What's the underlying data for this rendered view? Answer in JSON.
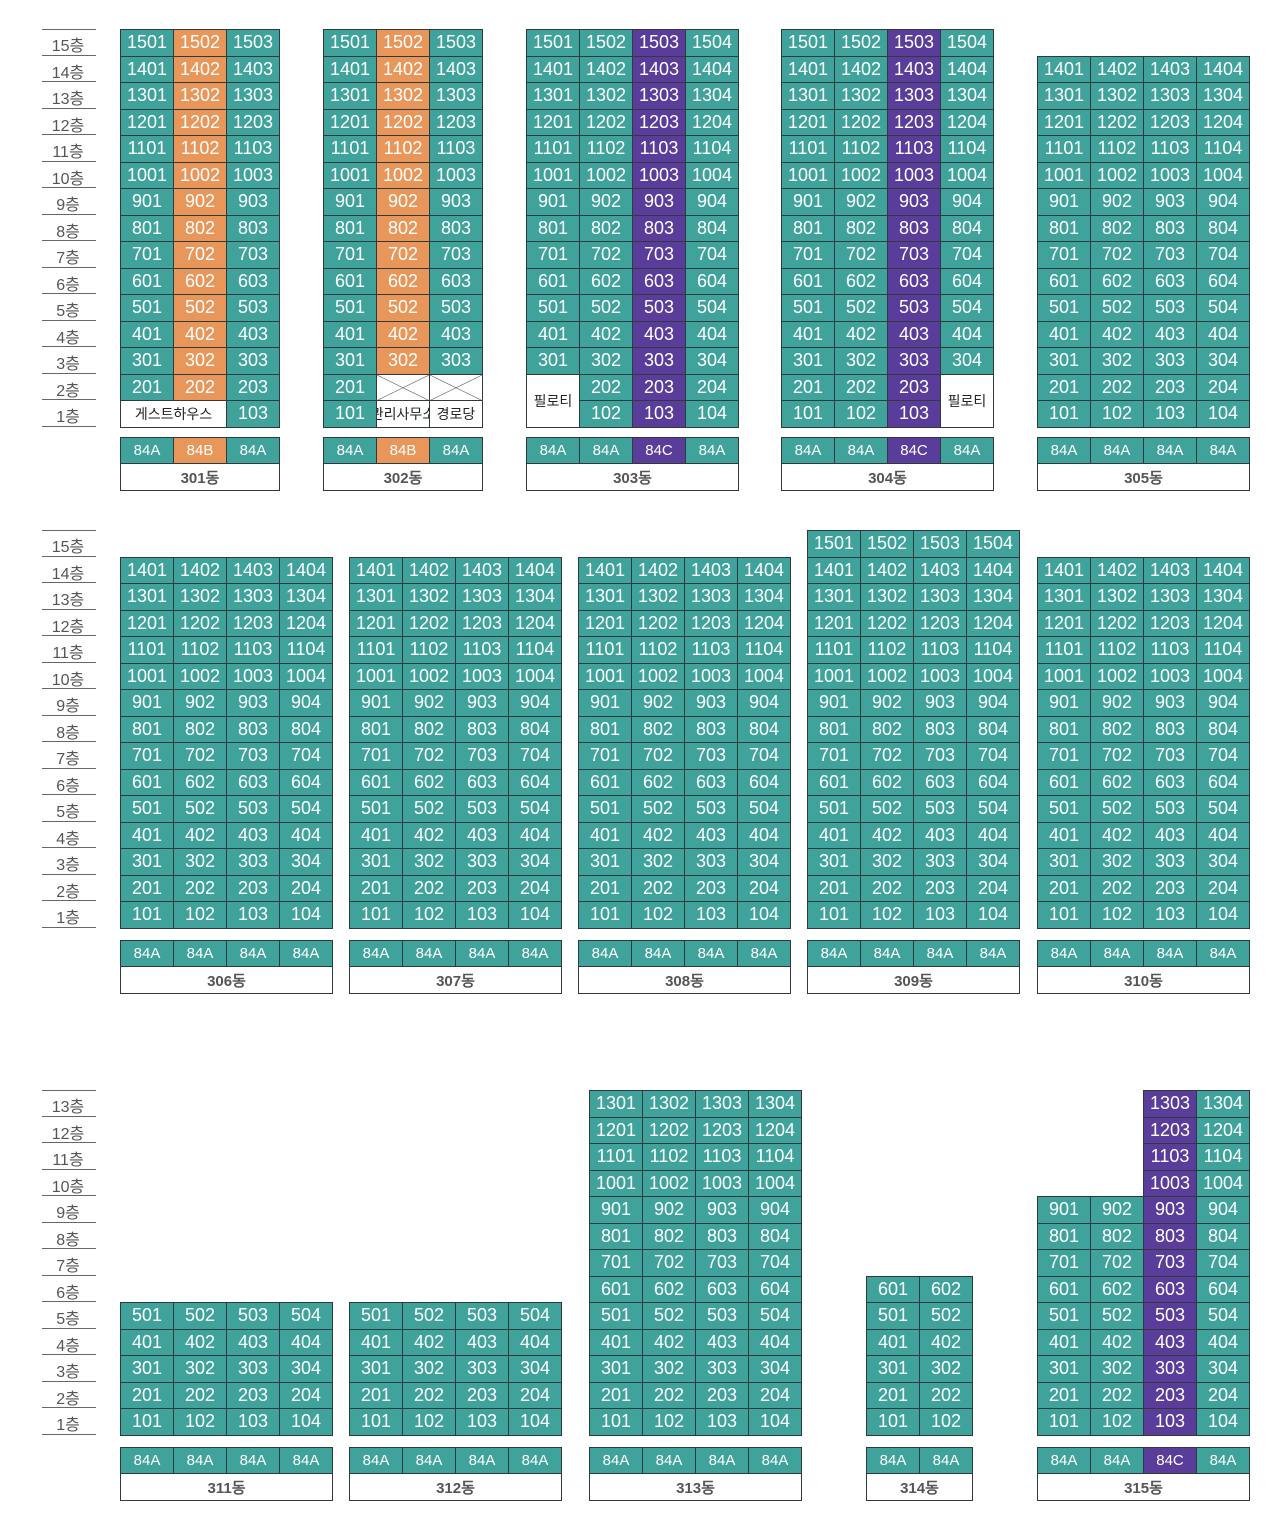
{
  "colors": {
    "teal": "#3fa39c",
    "orange": "#e8965a",
    "purple": "#5a3d9a"
  },
  "sections": [
    {
      "floors": [
        "15층",
        "14층",
        "13층",
        "12층",
        "11층",
        "10층",
        "9층",
        "8층",
        "7층",
        "6층",
        "5층",
        "4층",
        "3층",
        "2층",
        "1층"
      ]
    },
    {
      "floors": [
        "15층",
        "14층",
        "13층",
        "12층",
        "11층",
        "10층",
        "9층",
        "8층",
        "7층",
        "6층",
        "5층",
        "4층",
        "3층",
        "2층",
        "1층"
      ]
    },
    {
      "floors": [
        "13층",
        "12층",
        "11층",
        "10층",
        "9층",
        "8층",
        "7층",
        "6층",
        "5층",
        "4층",
        "3층",
        "2층",
        "1층"
      ]
    }
  ],
  "buildings": [
    {
      "name": "301동",
      "section": 0,
      "cols": 3,
      "types": [
        "84A",
        "84B",
        "84A"
      ],
      "type_colors": [
        "teal",
        "orange",
        "teal"
      ],
      "col_colors": [
        "teal",
        "orange",
        "teal"
      ],
      "top_floor": 15,
      "specials": [
        {
          "floor": 1,
          "col": 0,
          "span": 2,
          "label": "게스트하우스",
          "kind": "white"
        }
      ]
    },
    {
      "name": "302동",
      "section": 0,
      "cols": 3,
      "types": [
        "84A",
        "84B",
        "84A"
      ],
      "type_colors": [
        "teal",
        "orange",
        "teal"
      ],
      "col_colors": [
        "teal",
        "orange",
        "teal"
      ],
      "top_floor": 15,
      "specials": [
        {
          "floor": 2,
          "col": 1,
          "kind": "cross"
        },
        {
          "floor": 2,
          "col": 2,
          "kind": "cross"
        },
        {
          "floor": 1,
          "col": 1,
          "label": "관리사무소",
          "kind": "white"
        },
        {
          "floor": 1,
          "col": 2,
          "label": "경로당",
          "kind": "white"
        }
      ]
    },
    {
      "name": "303동",
      "section": 0,
      "cols": 4,
      "types": [
        "84A",
        "84A",
        "84C",
        "84A"
      ],
      "type_colors": [
        "teal",
        "teal",
        "purple",
        "teal"
      ],
      "col_colors": [
        "teal",
        "teal",
        "purple",
        "teal"
      ],
      "top_floor": 15,
      "specials": [
        {
          "floor": 2,
          "col": 0,
          "rows": 2,
          "label": "필로티",
          "kind": "white"
        }
      ]
    },
    {
      "name": "304동",
      "section": 0,
      "cols": 4,
      "types": [
        "84A",
        "84A",
        "84C",
        "84A"
      ],
      "type_colors": [
        "teal",
        "teal",
        "purple",
        "teal"
      ],
      "col_colors": [
        "teal",
        "teal",
        "purple",
        "teal"
      ],
      "top_floor": 15,
      "specials": [
        {
          "floor": 2,
          "col": 3,
          "rows": 2,
          "label": "필로티",
          "kind": "white"
        }
      ]
    },
    {
      "name": "305동",
      "section": 0,
      "cols": 4,
      "types": [
        "84A",
        "84A",
        "84A",
        "84A"
      ],
      "type_colors": [
        "teal",
        "teal",
        "teal",
        "teal"
      ],
      "col_colors": [
        "teal",
        "teal",
        "teal",
        "teal"
      ],
      "top_floor": 14,
      "specials": []
    },
    {
      "name": "306동",
      "section": 1,
      "cols": 4,
      "types": [
        "84A",
        "84A",
        "84A",
        "84A"
      ],
      "type_colors": [
        "teal",
        "teal",
        "teal",
        "teal"
      ],
      "col_colors": [
        "teal",
        "teal",
        "teal",
        "teal"
      ],
      "top_floor": 14,
      "specials": []
    },
    {
      "name": "307동",
      "section": 1,
      "cols": 4,
      "types": [
        "84A",
        "84A",
        "84A",
        "84A"
      ],
      "type_colors": [
        "teal",
        "teal",
        "teal",
        "teal"
      ],
      "col_colors": [
        "teal",
        "teal",
        "teal",
        "teal"
      ],
      "top_floor": 14,
      "specials": []
    },
    {
      "name": "308동",
      "section": 1,
      "cols": 4,
      "types": [
        "84A",
        "84A",
        "84A",
        "84A"
      ],
      "type_colors": [
        "teal",
        "teal",
        "teal",
        "teal"
      ],
      "col_colors": [
        "teal",
        "teal",
        "teal",
        "teal"
      ],
      "top_floor": 14,
      "specials": []
    },
    {
      "name": "309동",
      "section": 1,
      "cols": 4,
      "types": [
        "84A",
        "84A",
        "84A",
        "84A"
      ],
      "type_colors": [
        "teal",
        "teal",
        "teal",
        "teal"
      ],
      "col_colors": [
        "teal",
        "teal",
        "teal",
        "teal"
      ],
      "top_floor": 15,
      "specials": []
    },
    {
      "name": "310동",
      "section": 1,
      "cols": 4,
      "types": [
        "84A",
        "84A",
        "84A",
        "84A"
      ],
      "type_colors": [
        "teal",
        "teal",
        "teal",
        "teal"
      ],
      "col_colors": [
        "teal",
        "teal",
        "teal",
        "teal"
      ],
      "top_floor": 14,
      "specials": []
    },
    {
      "name": "311동",
      "section": 2,
      "cols": 4,
      "types": [
        "84A",
        "84A",
        "84A",
        "84A"
      ],
      "type_colors": [
        "teal",
        "teal",
        "teal",
        "teal"
      ],
      "col_colors": [
        "teal",
        "teal",
        "teal",
        "teal"
      ],
      "top_floor": 5,
      "specials": []
    },
    {
      "name": "312동",
      "section": 2,
      "cols": 4,
      "types": [
        "84A",
        "84A",
        "84A",
        "84A"
      ],
      "type_colors": [
        "teal",
        "teal",
        "teal",
        "teal"
      ],
      "col_colors": [
        "teal",
        "teal",
        "teal",
        "teal"
      ],
      "top_floor": 5,
      "specials": []
    },
    {
      "name": "313동",
      "section": 2,
      "cols": 4,
      "types": [
        "84A",
        "84A",
        "84A",
        "84A"
      ],
      "type_colors": [
        "teal",
        "teal",
        "teal",
        "teal"
      ],
      "col_colors": [
        "teal",
        "teal",
        "teal",
        "teal"
      ],
      "top_floor": 13,
      "specials": []
    },
    {
      "name": "314동",
      "section": 2,
      "cols": 2,
      "types": [
        "84A",
        "84A"
      ],
      "type_colors": [
        "teal",
        "teal"
      ],
      "col_colors": [
        "teal",
        "teal"
      ],
      "top_floor": 6,
      "specials": []
    },
    {
      "name": "315동",
      "section": 2,
      "cols": 4,
      "types": [
        "84A",
        "84A",
        "84C",
        "84A"
      ],
      "type_colors": [
        "teal",
        "teal",
        "purple",
        "teal"
      ],
      "col_colors": [
        "teal",
        "teal",
        "purple",
        "teal"
      ],
      "top_floor": 13,
      "col_top_floors": [
        9,
        9,
        13,
        13
      ],
      "specials": []
    }
  ]
}
